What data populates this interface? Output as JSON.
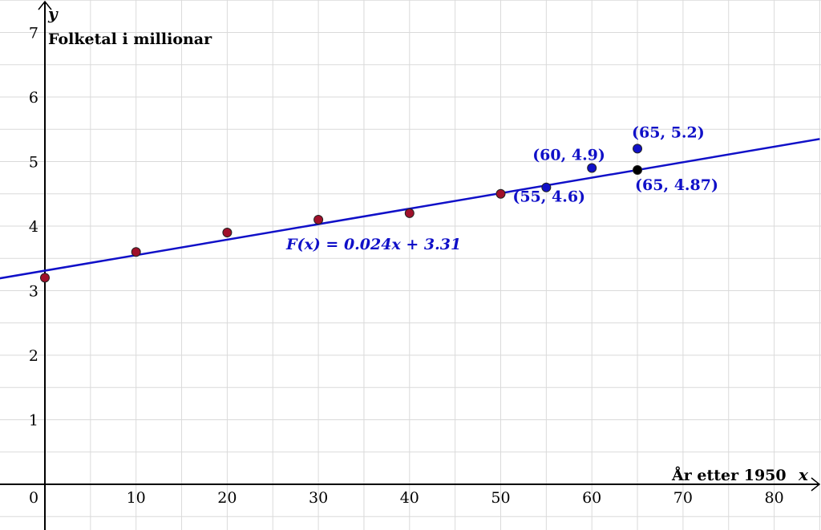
{
  "chart_data": {
    "type": "scatter",
    "xlabel": "År etter 1950",
    "xlabel_var": "x",
    "ylabel": "Folketal i millionar",
    "ylabel_var": "y",
    "xlim": [
      -5,
      85
    ],
    "ylim": [
      -0.7,
      7.5
    ],
    "x_ticks": [
      0,
      10,
      20,
      30,
      40,
      50,
      60,
      70,
      80
    ],
    "y_ticks": [
      1,
      2,
      3,
      4,
      5,
      6,
      7
    ],
    "grid": true,
    "series": [
      {
        "color": "#a0102a",
        "points": [
          [
            0,
            3.2
          ],
          [
            10,
            3.6
          ],
          [
            20,
            3.9
          ],
          [
            30,
            4.1
          ],
          [
            40,
            4.2
          ],
          [
            50,
            4.5
          ]
        ]
      },
      {
        "color": "#1010c8",
        "points": [
          [
            55,
            4.6
          ],
          [
            60,
            4.9
          ],
          [
            65,
            5.2
          ]
        ]
      },
      {
        "color": "#000000",
        "points": [
          [
            65,
            4.87
          ]
        ]
      }
    ],
    "trendline": {
      "label": "F(x) = 0.024x + 3.31",
      "slope": 0.024,
      "intercept": 3.31,
      "color": "#1010c8"
    },
    "annotations": [
      {
        "text": "(55, 4.6)",
        "x": 55,
        "y": 4.6,
        "color": "#1010c8"
      },
      {
        "text": "(60, 4.9)",
        "x": 60,
        "y": 4.9,
        "color": "#1010c8"
      },
      {
        "text": "(65, 5.2)",
        "x": 65,
        "y": 5.2,
        "color": "#1010c8"
      },
      {
        "text": "(65, 4.87)",
        "x": 65,
        "y": 4.87,
        "color": "#1010c8"
      }
    ]
  }
}
